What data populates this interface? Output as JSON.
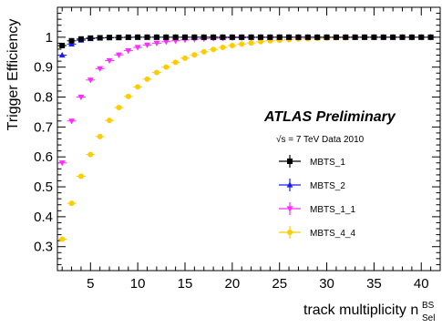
{
  "chart_data": {
    "type": "scatter",
    "title": "",
    "xlabel": "track multiplicity n",
    "xlabel_sup": "BS",
    "xlabel_sub": "Sel",
    "ylabel": "Trigger Efficiency",
    "xlim": [
      1.5,
      42
    ],
    "ylim": [
      0.22,
      1.1
    ],
    "x_ticks": [
      5,
      10,
      15,
      20,
      25,
      30,
      35,
      40
    ],
    "x_tick_labels": [
      "5",
      "10",
      "15",
      "20",
      "25",
      "30",
      "35",
      "40"
    ],
    "y_ticks": [
      0.3,
      0.4,
      0.5,
      0.6,
      0.7,
      0.8,
      0.9,
      1.0
    ],
    "y_tick_labels": [
      "0.3",
      "0.4",
      "0.5",
      "0.6",
      "0.7",
      "0.8",
      "0.9",
      "1"
    ],
    "grid": false,
    "legend_position": "right",
    "annotations": {
      "atlas": "ATLAS Preliminary",
      "energy": "√s = 7 TeV Data 2010"
    },
    "series": [
      {
        "name": "MBTS_1",
        "color": "#000000",
        "marker": "square",
        "x": [
          2,
          3,
          4,
          5,
          6,
          7,
          8,
          9,
          10,
          11,
          12,
          13,
          14,
          15,
          16,
          17,
          18,
          19,
          20,
          21,
          22,
          23,
          24,
          25,
          26,
          27,
          28,
          29,
          30,
          31,
          32,
          33,
          34,
          35,
          36,
          37,
          38,
          39,
          40,
          41
        ],
        "y": [
          0.972,
          0.988,
          0.994,
          0.997,
          0.998,
          0.999,
          0.999,
          1.0,
          1.0,
          1.0,
          1.0,
          1.0,
          1.0,
          1.0,
          1.0,
          1.0,
          1.0,
          1.0,
          1.0,
          1.0,
          1.0,
          1.0,
          1.0,
          1.0,
          1.0,
          1.0,
          1.0,
          1.0,
          1.0,
          1.0,
          1.0,
          1.0,
          1.0,
          1.0,
          1.0,
          1.0,
          1.0,
          1.0,
          1.0,
          1.0
        ]
      },
      {
        "name": "MBTS_2",
        "color": "#1a1aff",
        "marker": "triangle-up",
        "x": [
          2,
          3,
          4,
          5,
          6,
          7,
          8,
          9,
          10,
          11,
          12,
          13,
          14,
          15,
          16,
          17,
          18,
          19,
          20,
          21,
          22,
          23,
          24,
          25,
          26,
          27,
          28,
          29,
          30,
          31,
          32,
          33,
          34,
          35,
          36,
          37,
          38,
          39,
          40,
          41
        ],
        "y": [
          0.94,
          0.977,
          0.99,
          0.995,
          0.997,
          0.998,
          0.999,
          0.999,
          1.0,
          1.0,
          1.0,
          1.0,
          1.0,
          1.0,
          1.0,
          1.0,
          1.0,
          1.0,
          1.0,
          1.0,
          1.0,
          1.0,
          1.0,
          1.0,
          1.0,
          1.0,
          1.0,
          1.0,
          1.0,
          1.0,
          1.0,
          1.0,
          1.0,
          1.0,
          1.0,
          1.0,
          1.0,
          1.0,
          1.0,
          1.0
        ]
      },
      {
        "name": "MBTS_1_1",
        "color": "#ff2bff",
        "marker": "triangle-down",
        "x": [
          2,
          3,
          4,
          5,
          6,
          7,
          8,
          9,
          10,
          11,
          12,
          13,
          14,
          15,
          16,
          17,
          18,
          19,
          20,
          21,
          22,
          23,
          24,
          25,
          26,
          27,
          28,
          29,
          30,
          31,
          32,
          33,
          34,
          35,
          36,
          37,
          38,
          39,
          40,
          41
        ],
        "y": [
          0.58,
          0.72,
          0.8,
          0.857,
          0.895,
          0.922,
          0.941,
          0.955,
          0.966,
          0.974,
          0.98,
          0.985,
          0.988,
          0.991,
          0.993,
          0.995,
          0.996,
          0.997,
          0.998,
          0.998,
          0.999,
          0.999,
          0.999,
          1.0,
          1.0,
          1.0,
          1.0,
          1.0,
          1.0,
          1.0,
          1.0,
          1.0,
          1.0,
          1.0,
          1.0,
          1.0,
          1.0,
          1.0,
          1.0,
          1.0
        ]
      },
      {
        "name": "MBTS_4_4",
        "color": "#ffcc00",
        "marker": "circle",
        "x": [
          2,
          3,
          4,
          5,
          6,
          7,
          8,
          9,
          10,
          11,
          12,
          13,
          14,
          15,
          16,
          17,
          18,
          19,
          20,
          21,
          22,
          23,
          24,
          25,
          26,
          27,
          28,
          29,
          30,
          31,
          32,
          33,
          34,
          35,
          36,
          37,
          38,
          39,
          40,
          41
        ],
        "y": [
          0.325,
          0.445,
          0.535,
          0.608,
          0.668,
          0.722,
          0.765,
          0.802,
          0.834,
          0.86,
          0.882,
          0.9,
          0.916,
          0.93,
          0.941,
          0.951,
          0.959,
          0.966,
          0.972,
          0.977,
          0.981,
          0.985,
          0.988,
          0.99,
          0.992,
          0.994,
          0.995,
          0.996,
          0.997,
          0.998,
          0.998,
          0.999,
          0.999,
          0.999,
          1.0,
          1.0,
          1.0,
          1.0,
          1.0,
          1.0
        ]
      }
    ]
  }
}
